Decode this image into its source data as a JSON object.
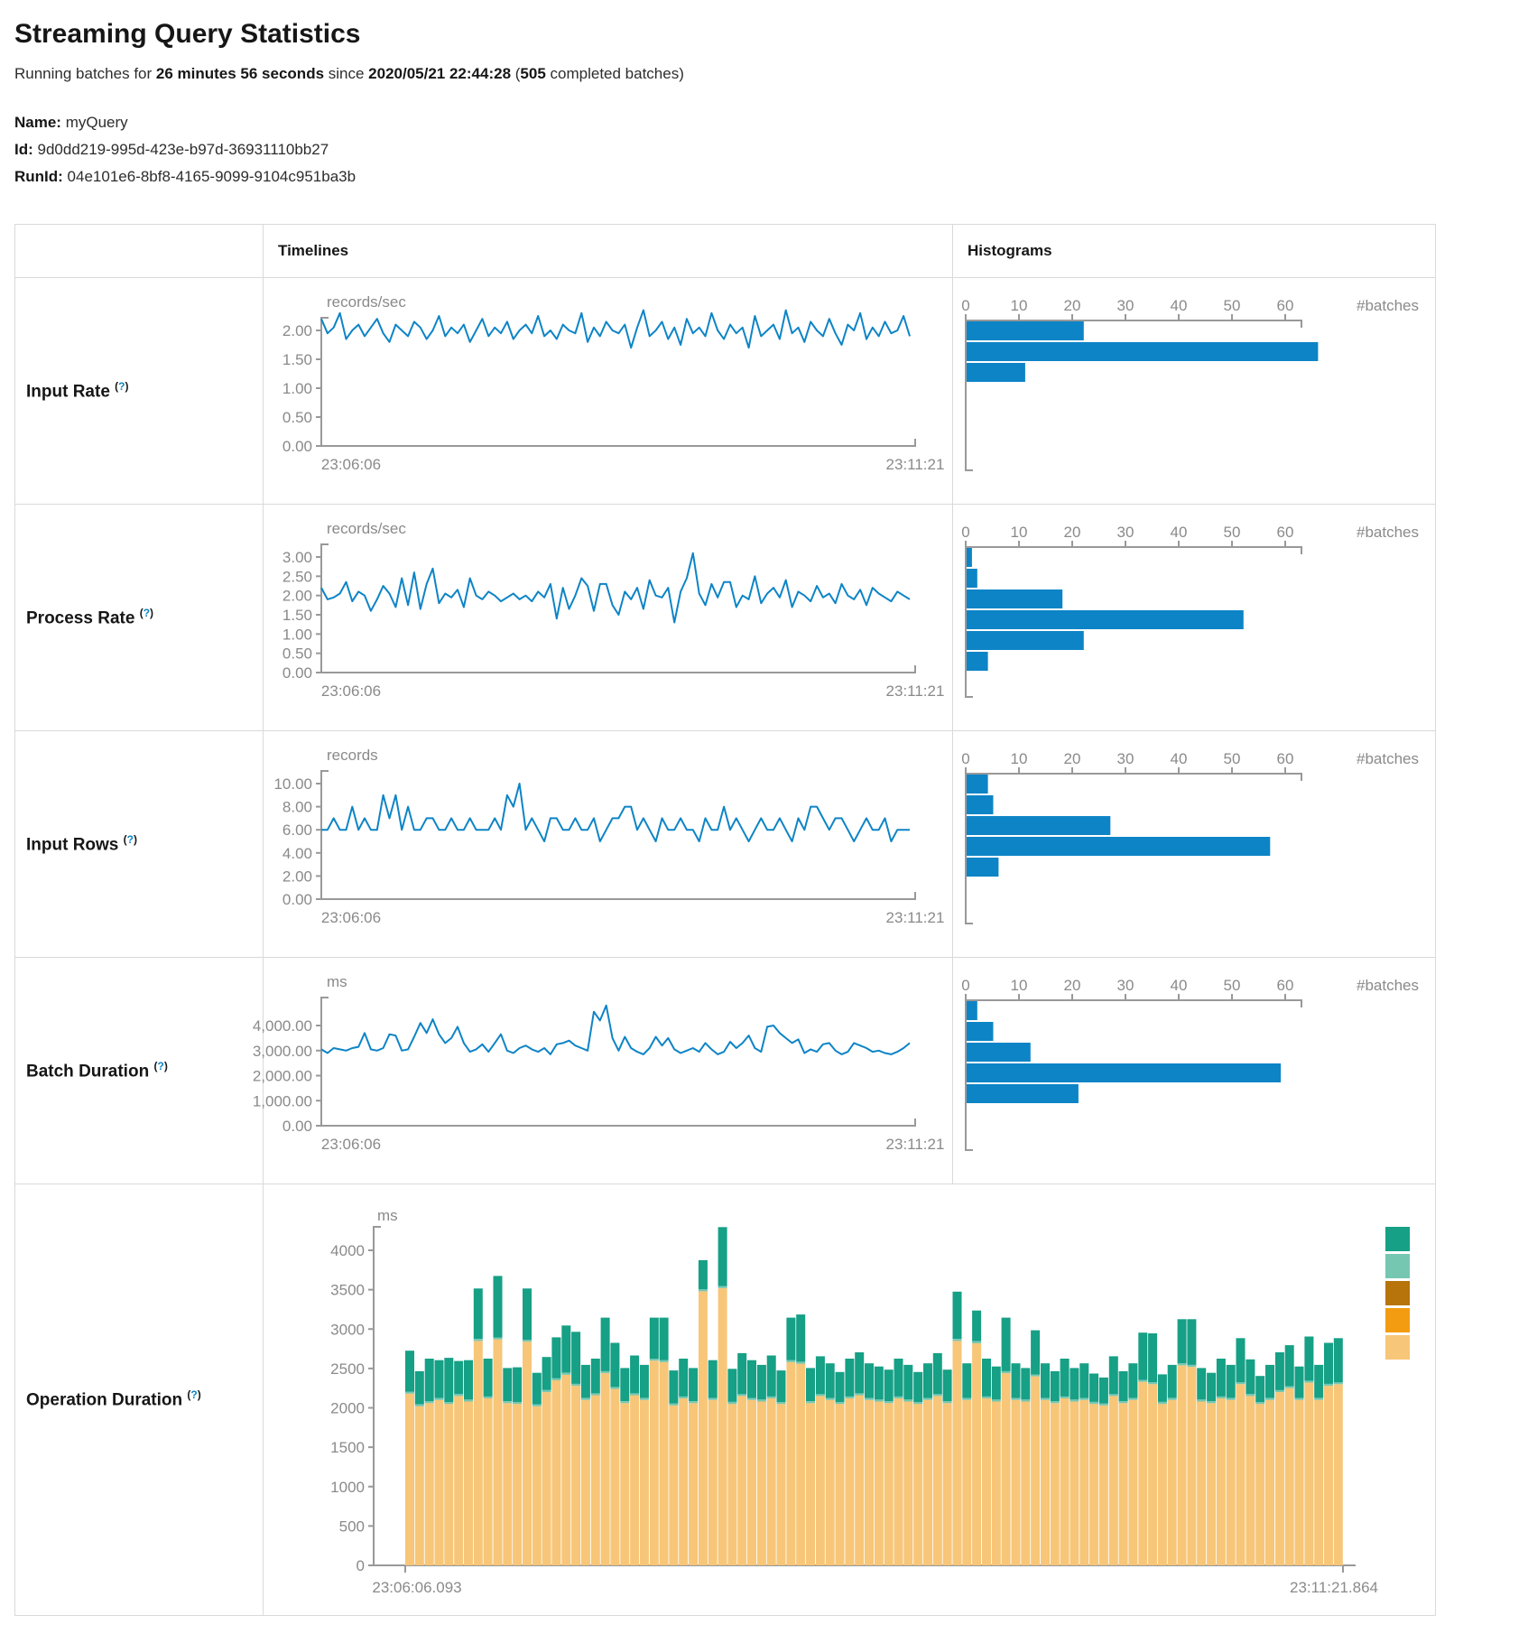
{
  "header": {
    "title": "Streaming Query Statistics",
    "running_prefix": "Running batches for ",
    "duration": "26 minutes 56 seconds",
    "since_text": " since ",
    "start_time": "2020/05/21 22:44:28",
    "paren_open": " (",
    "completed_batches": "505",
    "batches_suffix": " completed batches)"
  },
  "meta": {
    "name_label": "Name:",
    "name_value": " myQuery",
    "id_label": "Id:",
    "id_value": " 9d0dd219-995d-423e-b97d-36931110bb27",
    "runid_label": "RunId:",
    "runid_value": " 04e101e6-8bf8-4165-9099-9104c951ba3b"
  },
  "help": {
    "open": "(",
    "q": "?",
    "close": ")"
  },
  "table": {
    "col_timelines": "Timelines",
    "col_histograms": "Histograms",
    "rows": [
      {
        "label": "Input Rate"
      },
      {
        "label": "Process Rate"
      },
      {
        "label": "Input Rows"
      },
      {
        "label": "Batch Duration"
      },
      {
        "label": "Operation Duration"
      }
    ]
  },
  "colors": {
    "series_blue": "#0d84c6",
    "axis_line": "#999999",
    "axis_text": "#8a8a8a",
    "op_teal": "#16a085",
    "op_light_teal": "#76c7b1",
    "op_dark_gold": "#b7740a",
    "op_orange": "#f39c12",
    "op_tan": "#f7c678"
  },
  "chart_data": [
    {
      "metric": "input_rate",
      "type": "line",
      "unit": "records/sec",
      "x_start": "23:06:06",
      "x_end": "23:11:21",
      "y_ticks": [
        2,
        1.5,
        1,
        0.5,
        0
      ],
      "y_tick_labels": [
        "2.00",
        "1.50",
        "1.00",
        "0.50",
        "0.00"
      ],
      "ylim": [
        0,
        2.35
      ],
      "values": [
        2.2,
        1.95,
        2.05,
        2.3,
        1.85,
        2.0,
        2.1,
        1.9,
        2.05,
        2.2,
        1.95,
        1.8,
        2.1,
        2.0,
        1.9,
        2.15,
        2.05,
        1.85,
        2.0,
        2.25,
        1.9,
        2.05,
        1.95,
        2.1,
        1.8,
        2.0,
        2.2,
        1.9,
        2.05,
        1.95,
        2.15,
        1.85,
        2.0,
        2.1,
        1.95,
        2.25,
        1.9,
        2.0,
        1.85,
        2.1,
        2.0,
        1.95,
        2.3,
        1.8,
        2.05,
        1.9,
        2.15,
        2.0,
        1.95,
        2.1,
        1.7,
        2.05,
        2.35,
        1.9,
        2.0,
        2.15,
        1.85,
        2.05,
        1.75,
        2.2,
        1.95,
        2.05,
        1.9,
        2.3,
        2.0,
        1.85,
        2.1,
        1.95,
        2.05,
        1.7,
        2.25,
        1.9,
        2.0,
        2.1,
        1.85,
        2.35,
        1.95,
        2.05,
        1.8,
        2.15,
        2.0,
        1.9,
        2.2,
        1.95,
        1.75,
        2.1,
        2.0,
        2.3,
        1.85,
        2.05,
        1.9,
        2.15,
        1.95,
        2.0,
        2.25,
        1.9
      ],
      "histogram": {
        "label": "#batches",
        "x_tick_labels": [
          "0",
          "10",
          "20",
          "30",
          "40",
          "50",
          "60"
        ],
        "bin_counts": [
          22,
          66,
          11
        ]
      }
    },
    {
      "metric": "process_rate",
      "type": "line",
      "unit": "records/sec",
      "x_start": "23:06:06",
      "x_end": "23:11:21",
      "y_ticks": [
        3,
        2.5,
        2,
        1.5,
        1,
        0.5,
        0
      ],
      "y_tick_labels": [
        "3.00",
        "2.50",
        "2.00",
        "1.50",
        "1.00",
        "0.50",
        "0.00"
      ],
      "ylim": [
        0,
        3.1
      ],
      "values": [
        2.2,
        1.9,
        1.95,
        2.05,
        2.35,
        1.85,
        2.1,
        2.0,
        1.6,
        1.9,
        2.25,
        2.05,
        1.7,
        2.45,
        1.75,
        2.6,
        1.65,
        2.3,
        2.7,
        1.8,
        2.05,
        1.95,
        2.15,
        1.7,
        2.45,
        2.0,
        1.9,
        2.1,
        2.0,
        1.85,
        1.95,
        2.05,
        1.9,
        2.0,
        1.85,
        2.1,
        1.95,
        2.3,
        1.4,
        2.2,
        1.65,
        2.0,
        2.45,
        2.25,
        1.6,
        2.3,
        2.3,
        1.75,
        1.5,
        2.1,
        1.9,
        2.2,
        1.65,
        2.4,
        2.0,
        1.95,
        2.2,
        1.3,
        2.1,
        2.45,
        3.1,
        2.05,
        1.75,
        2.3,
        1.95,
        2.35,
        2.35,
        1.7,
        2.0,
        1.9,
        2.5,
        1.8,
        2.05,
        2.2,
        1.95,
        2.4,
        1.7,
        2.1,
        2.0,
        1.85,
        2.25,
        1.95,
        2.05,
        1.8,
        2.3,
        2.0,
        1.9,
        2.15,
        1.75,
        2.2,
        2.05,
        1.95,
        1.85,
        2.1,
        2.0,
        1.9
      ],
      "histogram": {
        "label": "#batches",
        "x_tick_labels": [
          "0",
          "10",
          "20",
          "30",
          "40",
          "50",
          "60"
        ],
        "bin_counts": [
          1,
          2,
          18,
          52,
          22,
          4
        ]
      }
    },
    {
      "metric": "input_rows",
      "type": "line",
      "unit": "records",
      "x_start": "23:06:06",
      "x_end": "23:11:21",
      "y_ticks": [
        10,
        8,
        6,
        4,
        2,
        0
      ],
      "y_tick_labels": [
        "10.00",
        "8.00",
        "6.00",
        "4.00",
        "2.00",
        "0.00"
      ],
      "ylim": [
        0,
        10
      ],
      "values": [
        6,
        6,
        7,
        6,
        6,
        8,
        6,
        7,
        6,
        6,
        9,
        7,
        9,
        6,
        8,
        6,
        6,
        7,
        7,
        6,
        6,
        7,
        6,
        6,
        7,
        6,
        6,
        6,
        7,
        6,
        9,
        8,
        10,
        6,
        7,
        6,
        5,
        7,
        7,
        6,
        6,
        7,
        6,
        6,
        7,
        5,
        6,
        7,
        7,
        8,
        8,
        6,
        7,
        6,
        5,
        7,
        6,
        6,
        7,
        6,
        6,
        5,
        7,
        6,
        6,
        8,
        6,
        7,
        6,
        5,
        6,
        7,
        6,
        6,
        7,
        6,
        5,
        7,
        6,
        8,
        8,
        7,
        6,
        7,
        7,
        6,
        5,
        6,
        7,
        6,
        6,
        7,
        5,
        6,
        6,
        6
      ],
      "histogram": {
        "label": "#batches",
        "x_tick_labels": [
          "0",
          "10",
          "20",
          "30",
          "40",
          "50",
          "60"
        ],
        "bin_counts": [
          4,
          5,
          27,
          57,
          6
        ]
      }
    },
    {
      "metric": "batch_duration",
      "type": "line",
      "unit": "ms",
      "x_start": "23:06:06",
      "x_end": "23:11:21",
      "y_ticks": [
        4000,
        3000,
        2000,
        1000,
        0
      ],
      "y_tick_labels": [
        "4,000.00",
        "3,000.00",
        "2,000.00",
        "1,000.00",
        "0.00"
      ],
      "ylim": [
        0,
        4800
      ],
      "values": [
        3050,
        2900,
        3100,
        3050,
        3000,
        3100,
        3150,
        3700,
        3050,
        3000,
        3100,
        3650,
        3600,
        3000,
        3050,
        3550,
        4100,
        3700,
        4250,
        3650,
        3300,
        3500,
        3950,
        3300,
        2950,
        3050,
        3250,
        2950,
        3300,
        3650,
        3000,
        2900,
        3100,
        3200,
        3050,
        2950,
        3100,
        2850,
        3250,
        3300,
        3400,
        3200,
        3100,
        3000,
        4550,
        4200,
        4800,
        3500,
        3000,
        3550,
        3100,
        2950,
        2850,
        3100,
        3550,
        3200,
        3500,
        3050,
        2900,
        3000,
        3100,
        2950,
        3300,
        3050,
        2850,
        2950,
        3350,
        3100,
        3300,
        3600,
        3100,
        2950,
        3950,
        4000,
        3700,
        3500,
        3300,
        3450,
        2900,
        3050,
        2950,
        3250,
        3300,
        3000,
        2850,
        2950,
        3300,
        3200,
        3100,
        2950,
        3000,
        2900,
        2850,
        2950,
        3100,
        3300
      ],
      "histogram": {
        "label": "#batches",
        "x_tick_labels": [
          "0",
          "10",
          "20",
          "30",
          "40",
          "50",
          "60"
        ],
        "bin_counts": [
          2,
          5,
          12,
          59,
          21
        ]
      }
    },
    {
      "metric": "operation_duration",
      "type": "stacked-bar",
      "unit": "ms",
      "x_start": "23:06:06.093",
      "x_end": "23:11:21.864",
      "y_ticks": [
        4000,
        3500,
        3000,
        2500,
        2000,
        1500,
        1000,
        500,
        0
      ],
      "y_tick_labels": [
        "4000",
        "3500",
        "3000",
        "2500",
        "2000",
        "1500",
        "1000",
        "500",
        "0"
      ],
      "ylim": [
        0,
        4300
      ],
      "legend_colors": [
        "#16a085",
        "#76c7b1",
        "#b7740a",
        "#f39c12",
        "#f7c678"
      ],
      "series": [
        {
          "name": "bottom-tan",
          "color": "#f7c678",
          "values": [
            2180,
            2020,
            2060,
            2100,
            2050,
            2150,
            2080,
            2850,
            2120,
            2870,
            2060,
            2050,
            2840,
            2020,
            2200,
            2350,
            2420,
            2280,
            2100,
            2160,
            2440,
            2240,
            2060,
            2160,
            2100,
            2600,
            2580,
            2030,
            2120,
            2060,
            3480,
            2100,
            3520,
            2050,
            2150,
            2100,
            2080,
            2120,
            2050,
            2580,
            2560,
            2060,
            2150,
            2100,
            2050,
            2120,
            2160,
            2100,
            2080,
            2060,
            2120,
            2080,
            2050,
            2100,
            2150,
            2060,
            2850,
            2100,
            2820,
            2120,
            2080,
            2440,
            2100,
            2080,
            2400,
            2100,
            2060,
            2120,
            2080,
            2100,
            2050,
            2030,
            2150,
            2060,
            2100,
            2330,
            2300,
            2050,
            2100,
            2540,
            2520,
            2080,
            2060,
            2120,
            2100,
            2300,
            2150,
            2050,
            2100,
            2200,
            2250,
            2100,
            2320,
            2100,
            2280,
            2300
          ]
        },
        {
          "name": "middle-light-teal",
          "constant_value": 25,
          "color": "#76c7b1"
        },
        {
          "name": "top-teal",
          "color": "#16a085",
          "values": [
            520,
            420,
            540,
            480,
            560,
            420,
            500,
            640,
            480,
            780,
            420,
            440,
            650,
            400,
            420,
            520,
            600,
            660,
            420,
            440,
            680,
            560,
            420,
            480,
            420,
            520,
            540,
            420,
            480,
            420,
            370,
            480,
            750,
            420,
            520,
            480,
            440,
            520,
            400,
            540,
            600,
            420,
            480,
            440,
            380,
            480,
            520,
            440,
            420,
            400,
            480,
            440,
            380,
            440,
            520,
            400,
            600,
            440,
            390,
            480,
            420,
            680,
            440,
            400,
            560,
            440,
            380,
            480,
            400,
            440,
            360,
            330,
            480,
            380,
            440,
            600,
            620,
            350,
            420,
            560,
            580,
            400,
            360,
            480,
            420,
            560,
            440,
            330,
            420,
            480,
            520,
            400,
            560,
            420,
            520,
            560
          ]
        }
      ]
    }
  ]
}
